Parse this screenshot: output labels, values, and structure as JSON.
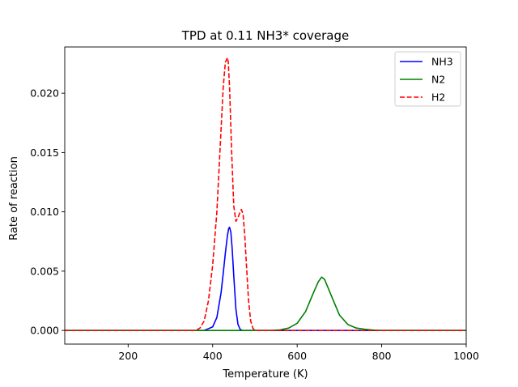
{
  "chart_data": {
    "type": "line",
    "title": "TPD at 0.11 NH3* coverage",
    "xlabel": "Temperature (K)",
    "ylabel": "Rate of reaction",
    "xlim": [
      50,
      1000
    ],
    "ylim": [
      -0.00115,
      0.0239
    ],
    "x_ticks": [
      200,
      400,
      600,
      800,
      1000
    ],
    "y_ticks": [
      0.0,
      0.005,
      0.01,
      0.015,
      0.02
    ],
    "x_tick_labels": [
      "200",
      "400",
      "600",
      "800",
      "1000"
    ],
    "y_tick_labels": [
      "0.000",
      "0.005",
      "0.010",
      "0.015",
      "0.020"
    ],
    "grid": false,
    "legend_position": "top-right",
    "series": [
      {
        "name": "NH3",
        "color": "#0000ff",
        "style": "solid",
        "x": [
          50,
          380,
          400,
          410,
          420,
          425,
          430,
          435,
          438,
          440,
          443,
          446,
          450,
          455,
          460,
          465,
          470,
          480,
          1000
        ],
        "y": [
          0,
          0,
          0.0003,
          0.0011,
          0.0032,
          0.0048,
          0.0065,
          0.008,
          0.0086,
          0.0087,
          0.0083,
          0.007,
          0.0046,
          0.0018,
          0.0005,
          0.0001,
          0,
          0,
          0
        ]
      },
      {
        "name": "N2",
        "color": "#008000",
        "style": "solid",
        "x": [
          50,
          540,
          560,
          580,
          600,
          620,
          640,
          650,
          658,
          665,
          680,
          700,
          720,
          740,
          760,
          780,
          800,
          1000
        ],
        "y": [
          0,
          0,
          5e-05,
          0.0002,
          0.0006,
          0.0016,
          0.0033,
          0.0041,
          0.0045,
          0.0043,
          0.003,
          0.0013,
          0.0005,
          0.0002,
          0.0001,
          3e-05,
          0,
          0
        ]
      },
      {
        "name": "H2",
        "color": "#ff0000",
        "style": "dashed",
        "x": [
          50,
          360,
          370,
          380,
          390,
          400,
          410,
          420,
          425,
          430,
          435,
          437,
          440,
          445,
          450,
          455,
          460,
          465,
          468,
          472,
          476,
          480,
          485,
          490,
          495,
          500,
          1000
        ],
        "y": [
          0,
          0,
          0.0002,
          0.0008,
          0.0025,
          0.0055,
          0.01,
          0.017,
          0.0205,
          0.0226,
          0.023,
          0.0226,
          0.0205,
          0.015,
          0.0105,
          0.0092,
          0.0095,
          0.01,
          0.0102,
          0.0098,
          0.008,
          0.0055,
          0.0025,
          0.0008,
          0.0002,
          0,
          0
        ]
      }
    ]
  }
}
